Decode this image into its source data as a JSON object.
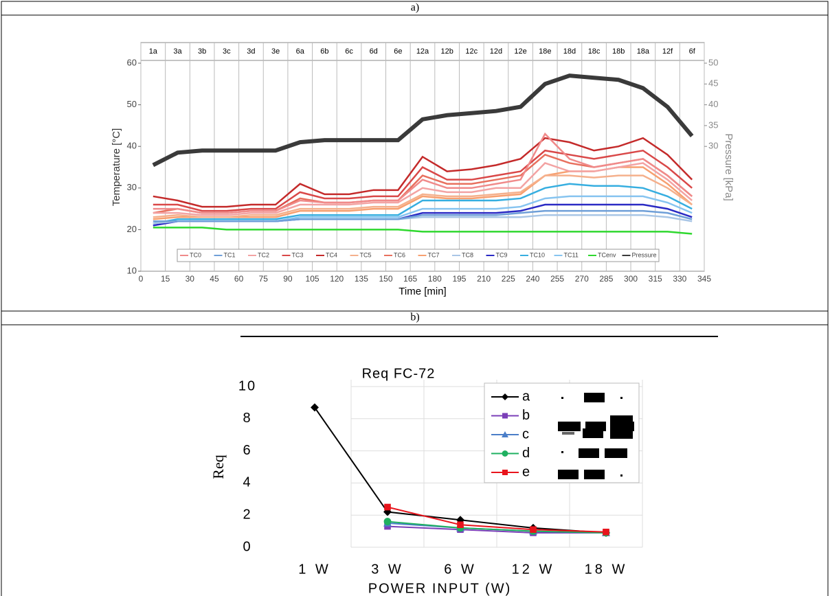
{
  "panels": [
    "a)",
    "b)"
  ],
  "chart_data": [
    {
      "type": "line",
      "ylabel": "Temperature [°C]",
      "y2label": "Pressure [kPa]",
      "xlabel": "Time [min]",
      "stages": [
        "1a",
        "3a",
        "3b",
        "3c",
        "3d",
        "3e",
        "6a",
        "6b",
        "6c",
        "6d",
        "6e",
        "12a",
        "12b",
        "12c",
        "12d",
        "12e",
        "18e",
        "18d",
        "18c",
        "18b",
        "18a",
        "12f",
        "6f"
      ],
      "x": [
        7.5,
        22.5,
        37.5,
        52.5,
        67.5,
        82.5,
        97.5,
        112.5,
        127.5,
        142.5,
        157.5,
        172.5,
        187.5,
        202.5,
        217.5,
        232.5,
        247.5,
        262.5,
        277.5,
        292.5,
        307.5,
        322.5,
        337.5
      ],
      "xlim": [
        0,
        345
      ],
      "xticks": [
        0,
        15,
        30,
        45,
        60,
        75,
        90,
        105,
        120,
        135,
        150,
        165,
        180,
        195,
        210,
        225,
        240,
        255,
        270,
        285,
        300,
        315,
        330,
        345
      ],
      "ylim": [
        10,
        60
      ],
      "yticks": [
        10,
        20,
        30,
        40,
        50,
        60
      ],
      "y2lim": [
        0,
        50
      ],
      "y2ticks": [
        30,
        35,
        40,
        45,
        50
      ],
      "grid": true,
      "series": [
        {
          "name": "TC0",
          "color": "#f08a8a",
          "values": [
            25,
            25,
            24,
            24,
            24.5,
            24.5,
            27,
            26.5,
            26.5,
            27,
            27,
            32,
            30,
            30,
            31,
            32,
            43,
            37,
            35,
            36,
            37,
            33,
            28
          ]
        },
        {
          "name": "TC1",
          "color": "#6f9fd8",
          "values": [
            22,
            22,
            22,
            22,
            22,
            22,
            22.5,
            22.5,
            22.5,
            22.5,
            22.5,
            23.5,
            23.5,
            23.5,
            23.5,
            24,
            24.5,
            24.5,
            24.5,
            24.5,
            24.5,
            24,
            22.5
          ]
        },
        {
          "name": "TC2",
          "color": "#f3a3a3",
          "values": [
            24,
            24,
            23.5,
            23.5,
            24,
            24,
            26,
            26,
            26,
            26.5,
            26.5,
            30,
            29,
            29,
            30,
            30,
            36,
            34,
            34,
            35,
            36,
            32,
            27
          ]
        },
        {
          "name": "TC3",
          "color": "#d94848",
          "values": [
            26,
            26,
            24.5,
            24.5,
            25,
            25,
            29,
            27.5,
            27.5,
            28,
            28,
            35,
            32,
            32,
            33,
            34,
            39,
            38,
            37,
            38,
            39,
            35,
            30
          ]
        },
        {
          "name": "TC4",
          "color": "#c42a2a",
          "values": [
            28,
            27,
            25.5,
            25.5,
            26,
            26,
            31,
            28.5,
            28.5,
            29.5,
            29.5,
            37.5,
            34,
            34.5,
            35.5,
            37,
            42,
            41,
            39,
            40,
            42,
            38,
            32
          ]
        },
        {
          "name": "TC5",
          "color": "#f5b08c",
          "values": [
            23,
            23.5,
            23,
            23,
            23.5,
            23.5,
            25,
            25,
            25,
            25.5,
            25.5,
            28.5,
            28,
            28,
            28.5,
            29,
            33,
            33,
            32.5,
            33,
            33,
            30,
            26
          ]
        },
        {
          "name": "TC6",
          "color": "#e8705e",
          "values": [
            24,
            25,
            24,
            24,
            24.5,
            24.5,
            27.5,
            26.5,
            26.5,
            27,
            27,
            33,
            31,
            31,
            32,
            33,
            38,
            36,
            35,
            36,
            37,
            33,
            28
          ]
        },
        {
          "name": "TC7",
          "color": "#f7a070",
          "values": [
            22.5,
            23,
            23,
            23,
            23,
            23,
            24.5,
            24.5,
            24.5,
            25,
            25,
            28,
            27.5,
            27.5,
            28,
            28.5,
            33,
            34,
            34,
            35,
            35,
            31,
            26
          ]
        },
        {
          "name": "TC8",
          "color": "#a9c6e6",
          "values": [
            21.5,
            22,
            22,
            22,
            22,
            22,
            22.5,
            22.5,
            22.5,
            22.5,
            22.5,
            23,
            23,
            23,
            23,
            23,
            23.5,
            23.5,
            23.5,
            23.5,
            23.5,
            23,
            22
          ]
        },
        {
          "name": "TC9",
          "color": "#2a2ac4",
          "values": [
            21,
            22,
            22,
            22,
            22,
            22,
            22.5,
            22.5,
            22.5,
            22.5,
            22.5,
            24,
            24,
            24,
            24,
            24.5,
            26,
            26,
            26,
            26,
            26,
            25,
            23
          ]
        },
        {
          "name": "TC10",
          "color": "#36aee0",
          "values": [
            21.5,
            22.5,
            22.5,
            22.5,
            22.5,
            22.5,
            23.5,
            23.5,
            23.5,
            23.5,
            23.5,
            27,
            27,
            27,
            27,
            27.5,
            30,
            31,
            30.5,
            30.5,
            30,
            28,
            25
          ]
        },
        {
          "name": "TC11",
          "color": "#86c4f0",
          "values": [
            21,
            22,
            22,
            22,
            22,
            22,
            23,
            23,
            23,
            23,
            23,
            25,
            25,
            25,
            25,
            25.5,
            27.5,
            28,
            28,
            28,
            28,
            26.5,
            24
          ]
        },
        {
          "name": "TCenv",
          "color": "#2ed82e",
          "values": [
            20.5,
            20.5,
            20.5,
            20,
            20,
            20,
            20,
            20,
            20,
            20,
            20,
            19.5,
            19.5,
            19.5,
            19.5,
            19.5,
            19.5,
            19.5,
            19.5,
            19.5,
            19.5,
            19.5,
            19
          ]
        },
        {
          "name": "Pressure",
          "color": "#3a3a3a",
          "axis": "y2",
          "values": [
            25.5,
            28.5,
            29,
            29,
            29,
            29,
            31,
            31.5,
            31.5,
            31.5,
            31.5,
            36.5,
            37.5,
            38,
            38.5,
            39.5,
            45,
            47,
            46.5,
            46,
            44,
            39.5,
            32.5
          ]
        }
      ]
    },
    {
      "type": "line",
      "title": "Req FC-72",
      "ylabel": "Req",
      "xlabel": "POWER INPUT (W)",
      "categories": [
        "1 W",
        "3 W",
        "6 W",
        "12 W",
        "18 W"
      ],
      "ylim": [
        0,
        10
      ],
      "yticks": [
        0,
        2,
        4,
        6,
        8,
        10
      ],
      "grid": true,
      "series": [
        {
          "name": "a",
          "color": "#000000",
          "marker": "diamond",
          "values": [
            8.7,
            2.2,
            1.7,
            1.2,
            0.9
          ]
        },
        {
          "name": "b",
          "color": "#7b3fb8",
          "marker": "square",
          "values": [
            null,
            1.3,
            1.1,
            0.9,
            0.9
          ]
        },
        {
          "name": "c",
          "color": "#4a7ec8",
          "marker": "triangle",
          "values": [
            null,
            1.5,
            1.2,
            1.0,
            0.9
          ]
        },
        {
          "name": "d",
          "color": "#1fb060",
          "marker": "circle",
          "values": [
            null,
            1.6,
            1.2,
            1.0,
            0.9
          ]
        },
        {
          "name": "e",
          "color": "#e8141c",
          "marker": "square",
          "values": [
            null,
            2.5,
            1.4,
            1.1,
            0.95
          ]
        }
      ]
    }
  ]
}
